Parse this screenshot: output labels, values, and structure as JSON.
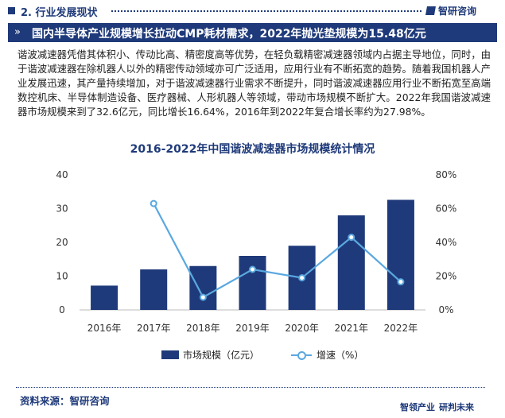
{
  "header": {
    "section": "2. 行业发展现状",
    "logo_text": "智研咨询"
  },
  "banner": {
    "text": "国内半导体产业规模增长拉动CMP耗材需求，2022年抛光垫规模为15.48亿元"
  },
  "paragraph": "谐波减速器凭借其体积小、传动比高、精密度高等优势，在轻负载精密减速器领域内占据主导地位，同时，由于谐波减速器在除机器人以外的精密传动领域亦可广泛适用，应用行业有不断拓宽的趋势。随着我国机器人产业发展迅速，其产量持续增加，对于谐波减速器行业需求不断提升，同时谐波减速器应用行业不断拓宽至高端数控机床、半导体制造设备、医疗器械、人形机器人等领域，带动市场规模不断扩大。2022年我国谐波减速器市场规模来到了32.6亿元，同比增长16.64%，2016年到2022年复合增长率约为27.98%。",
  "chart_data": {
    "type": "bar",
    "title": "2016-2022年中国谐波减速器市场规模统计情况",
    "categories": [
      "2016年",
      "2017年",
      "2018年",
      "2019年",
      "2020年",
      "2021年",
      "2022年"
    ],
    "series": [
      {
        "name": "市场规模（亿元）",
        "type": "bar",
        "axis": "left",
        "values": [
          7.2,
          12.0,
          13.0,
          16.0,
          19.0,
          28.0,
          32.6
        ]
      },
      {
        "name": "增速（%）",
        "type": "line",
        "axis": "right",
        "values": [
          null,
          63.0,
          7.5,
          24.0,
          19.0,
          43.0,
          16.64
        ]
      }
    ],
    "y_left": {
      "min": 0,
      "max": 40,
      "ticks": [
        0,
        10,
        20,
        30,
        40
      ]
    },
    "y_right": {
      "min": 0,
      "max": 80,
      "ticks": [
        "0%",
        "20%",
        "40%",
        "60%",
        "80%"
      ]
    },
    "legend_position": "bottom",
    "grid": false,
    "colors": {
      "bar": "#1f3a7a",
      "line": "#5aa8e0"
    }
  },
  "source": "资料来源：智研咨询",
  "footer": {
    "left": "智领产业",
    "right": "研判未来"
  }
}
